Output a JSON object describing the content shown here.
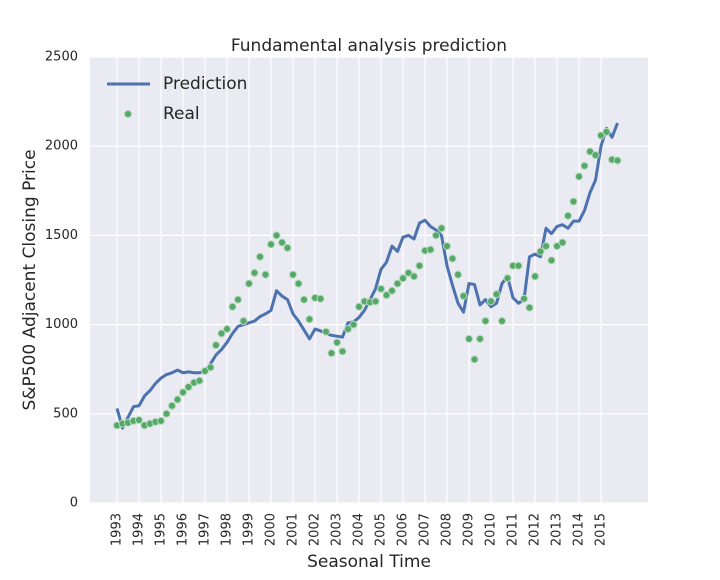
{
  "chart_data": {
    "type": "line-scatter",
    "title": "Fundamental analysis prediction",
    "x_label": "Seasonal Time",
    "y_label": "S&P500 Adjacent Closing Price",
    "categories": [
      "1993",
      null,
      null,
      null,
      "1994",
      null,
      null,
      null,
      "1995",
      null,
      null,
      null,
      "1996",
      null,
      null,
      null,
      "1997",
      null,
      null,
      null,
      "1998",
      null,
      null,
      null,
      "1999",
      null,
      null,
      null,
      "2000",
      null,
      null,
      null,
      "2001",
      null,
      null,
      null,
      "2002",
      null,
      null,
      null,
      "2003",
      null,
      null,
      null,
      "2004",
      null,
      null,
      null,
      "2005",
      null,
      null,
      null,
      "2006",
      null,
      null,
      null,
      "2007",
      null,
      null,
      null,
      "2008",
      null,
      null,
      null,
      "2009",
      null,
      null,
      null,
      "2010",
      null,
      null,
      null,
      "2011",
      null,
      null,
      null,
      "2012",
      null,
      null,
      null,
      "2013",
      null,
      null,
      null,
      "2014",
      null,
      null,
      null,
      "2015",
      null,
      null,
      null
    ],
    "series": [
      {
        "name": "Prediction",
        "kind": "line",
        "color": "#4c72b0",
        "values": [
          530,
          420,
          480,
          540,
          545,
          600,
          630,
          670,
          700,
          720,
          730,
          745,
          730,
          735,
          730,
          730,
          740,
          780,
          830,
          860,
          900,
          950,
          990,
          1000,
          1010,
          1020,
          1045,
          1060,
          1080,
          1190,
          1160,
          1140,
          1060,
          1020,
          970,
          920,
          975,
          965,
          950,
          940,
          935,
          930,
          1010,
          1015,
          1040,
          1080,
          1140,
          1200,
          1310,
          1350,
          1440,
          1410,
          1490,
          1500,
          1480,
          1570,
          1585,
          1550,
          1530,
          1500,
          1330,
          1220,
          1120,
          1070,
          1230,
          1225,
          1110,
          1140,
          1100,
          1120,
          1230,
          1270,
          1150,
          1120,
          1140,
          1380,
          1395,
          1380,
          1540,
          1510,
          1550,
          1560,
          1540,
          1580,
          1580,
          1640,
          1740,
          1810,
          2000,
          2100,
          2050,
          2130
        ]
      },
      {
        "name": "Real",
        "kind": "scatter",
        "color": "#55a868",
        "values": [
          435,
          445,
          450,
          460,
          465,
          435,
          445,
          455,
          460,
          500,
          545,
          580,
          620,
          650,
          675,
          685,
          740,
          760,
          885,
          950,
          975,
          1100,
          1140,
          1020,
          1230,
          1290,
          1380,
          1280,
          1450,
          1500,
          1460,
          1430,
          1280,
          1230,
          1140,
          1030,
          1150,
          1145,
          960,
          840,
          900,
          850,
          975,
          1000,
          1100,
          1130,
          1125,
          1130,
          1200,
          1165,
          1190,
          1230,
          1260,
          1290,
          1270,
          1330,
          1415,
          1420,
          1500,
          1540,
          1440,
          1370,
          1280,
          1160,
          920,
          805,
          920,
          1020,
          1130,
          1170,
          1020,
          1260,
          1330,
          1330,
          1145,
          1095,
          1270,
          1410,
          1440,
          1360,
          1440,
          1460,
          1610,
          1690,
          1830,
          1890,
          1970,
          1950,
          2060,
          2080,
          1925,
          1920
        ]
      }
    ],
    "ylim": [
      0,
      2500
    ],
    "yticks": [
      0,
      500,
      1000,
      1500,
      2000,
      2500
    ],
    "grid": true,
    "legend": "upper-left"
  }
}
